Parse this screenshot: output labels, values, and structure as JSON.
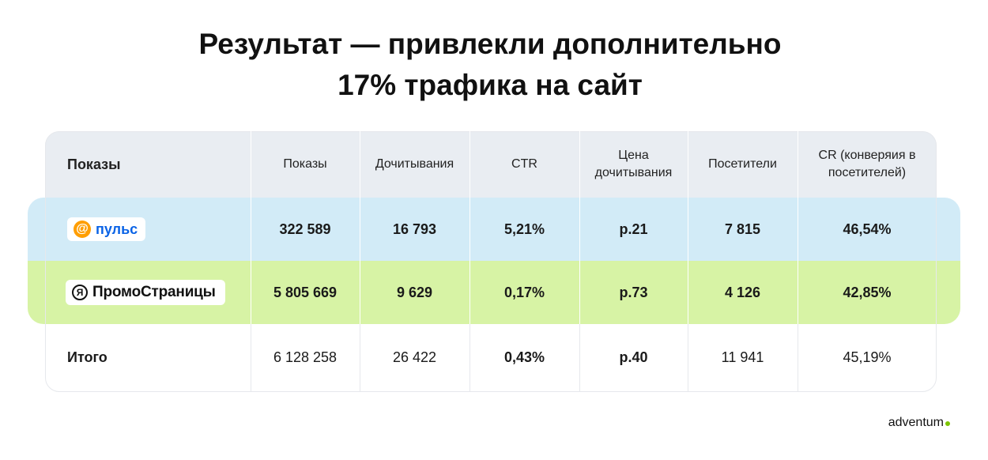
{
  "title": {
    "line1": "Результат — привлекли дополнительно",
    "line2": "17% трафика на сайт"
  },
  "table": {
    "headers": [
      "Показы",
      "Показы",
      "Дочитывания",
      "CTR",
      "Цена дочитывания",
      "Посетители",
      "CR (конверяия в посетителей)"
    ],
    "rows": [
      {
        "source": "пульс",
        "values": [
          "322 589",
          "16 793",
          "5,21%",
          "р.21",
          "7 815",
          "46,54%"
        ]
      },
      {
        "source": "ПромоСтраницы",
        "values": [
          "5 805 669",
          "9 629",
          "0,17%",
          "р.73",
          "4 126",
          "42,85%"
        ]
      },
      {
        "source": "Итого",
        "values": [
          "6 128 258",
          "26 422",
          "0,43%",
          "р.40",
          "11 941",
          "45,19%"
        ]
      }
    ]
  },
  "logos": {
    "pulse_icon": "at-sign-icon",
    "promo_icon": "yandex-ya-icon",
    "pulse_color": "#0a63e6",
    "pulse_icon_color": "#ff9e00"
  },
  "brand": {
    "name": "adventum",
    "accent": "#7cc400"
  },
  "colors": {
    "header_bg": "#e9edf2",
    "pulse_bg": "#d2ebf7",
    "promo_bg": "#d7f3a5"
  }
}
